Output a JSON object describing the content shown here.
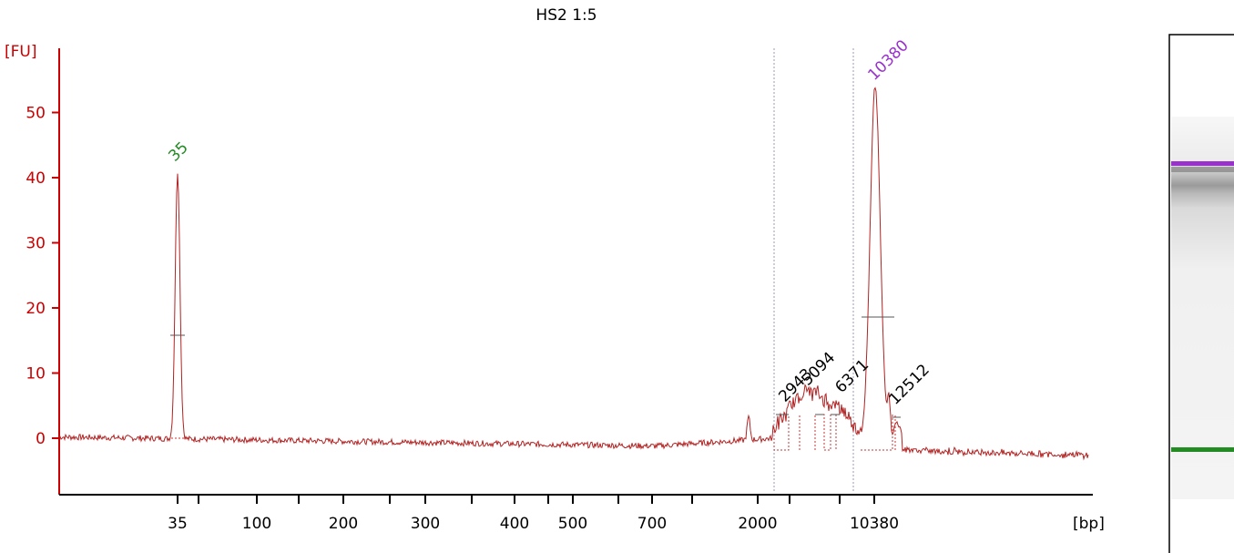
{
  "chart_data": {
    "type": "line",
    "title": "HS2 1:5",
    "ylabel": "[FU]",
    "xlabel": "[bp]",
    "ylim": [
      -8,
      60
    ],
    "y_ticks": [
      0,
      10,
      20,
      30,
      40,
      50
    ],
    "y_tick_labels": [
      "0",
      "10",
      "20",
      "30",
      "40",
      "50"
    ],
    "x_tick_labels": [
      "35",
      "100",
      "200",
      "300",
      "400",
      "500",
      "700",
      "2000",
      "10380",
      "[bp]"
    ],
    "baseline_color": "#b22222",
    "axis_color": "#cc0000",
    "marker_color_lower": "#228b22",
    "marker_color_upper": "#9932cc",
    "peaks": [
      {
        "label": "35",
        "size_bp": 35,
        "height": 41,
        "color": "#228b22"
      },
      {
        "label": "2943",
        "size_bp": 2943,
        "height": 8,
        "color": "#000000"
      },
      {
        "label": "5094",
        "size_bp": 5094,
        "height": 9,
        "color": "#000000"
      },
      {
        "label": "6371",
        "size_bp": 6371,
        "height": 6,
        "color": "#000000"
      },
      {
        "label": "10380",
        "size_bp": 10380,
        "height": 54,
        "color": "#9932cc"
      },
      {
        "label": "12512",
        "size_bp": 12512,
        "height": 4,
        "color": "#000000"
      }
    ]
  },
  "gel": {
    "background": "#ffffff",
    "upper_marker_color": "#9932cc",
    "lower_marker_color": "#228b22"
  }
}
